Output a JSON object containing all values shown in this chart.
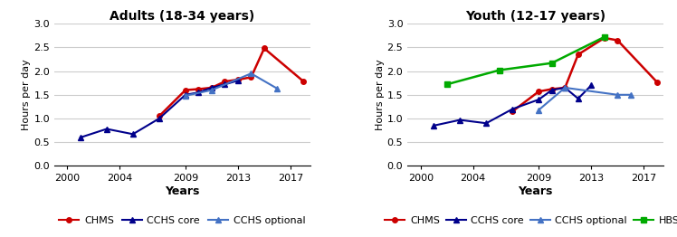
{
  "left_title": "Adults (18-34 years)",
  "right_title": "Youth (12-17 years)",
  "xlabel": "Years",
  "ylabel": "Hours per day",
  "ylim": [
    0,
    3
  ],
  "yticks": [
    0,
    0.5,
    1,
    1.5,
    2,
    2.5,
    3
  ],
  "xlim": [
    1999,
    2018.5
  ],
  "xticks": [
    2000,
    2004,
    2009,
    2013,
    2017
  ],
  "adults": {
    "CHMS": {
      "x": [
        2007,
        2009,
        2010,
        2011,
        2012,
        2013,
        2014,
        2015,
        2018
      ],
      "y": [
        1.05,
        1.6,
        1.62,
        1.65,
        1.78,
        1.82,
        1.87,
        2.48,
        1.78
      ],
      "color": "#cc0000",
      "marker": "o",
      "markersize": 4,
      "linestyle": "-",
      "linewidth": 1.8
    },
    "CCHS_core": {
      "x": [
        2001,
        2003,
        2005,
        2007,
        2009,
        2010,
        2011,
        2012,
        2013
      ],
      "y": [
        0.6,
        0.78,
        0.67,
        1.0,
        1.5,
        1.55,
        1.65,
        1.72,
        1.8
      ],
      "color": "#00008b",
      "marker": "^",
      "markersize": 4,
      "linestyle": "-",
      "linewidth": 1.5
    },
    "CCHS_optional": {
      "x": [
        2009,
        2011,
        2014,
        2016
      ],
      "y": [
        1.48,
        1.6,
        1.95,
        1.63
      ],
      "color": "#4472c4",
      "marker": "^",
      "markersize": 4,
      "linestyle": "-",
      "linewidth": 1.5
    }
  },
  "youth": {
    "CHMS": {
      "x": [
        2007,
        2009,
        2010,
        2011,
        2012,
        2014,
        2015,
        2018
      ],
      "y": [
        1.15,
        1.57,
        1.62,
        1.65,
        2.35,
        2.7,
        2.65,
        1.77
      ],
      "color": "#cc0000",
      "marker": "o",
      "markersize": 4,
      "linestyle": "-",
      "linewidth": 1.8
    },
    "CCHS_core": {
      "x": [
        2001,
        2003,
        2005,
        2007,
        2009,
        2010,
        2011,
        2012,
        2013
      ],
      "y": [
        0.85,
        0.97,
        0.9,
        1.2,
        1.4,
        1.6,
        1.65,
        1.42,
        1.7
      ],
      "color": "#00008b",
      "marker": "^",
      "markersize": 4,
      "linestyle": "-",
      "linewidth": 1.5
    },
    "CCHS_optional": {
      "x": [
        2009,
        2011,
        2015,
        2016
      ],
      "y": [
        1.18,
        1.65,
        1.5,
        1.5
      ],
      "color": "#4472c4",
      "marker": "^",
      "markersize": 4,
      "linestyle": "-",
      "linewidth": 1.5
    },
    "HBSC": {
      "x": [
        2002,
        2006,
        2010,
        2014
      ],
      "y": [
        1.72,
        2.02,
        2.17,
        2.72
      ],
      "color": "#00aa00",
      "marker": "s",
      "markersize": 5,
      "linestyle": "-",
      "linewidth": 1.8
    }
  }
}
